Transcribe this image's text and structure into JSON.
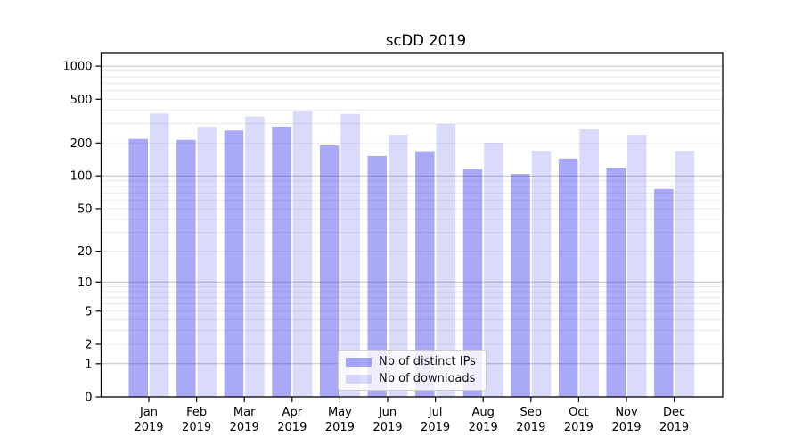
{
  "chart_data": {
    "type": "bar",
    "title": "scDD 2019",
    "categories": [
      "Jan 2019",
      "Feb 2019",
      "Mar 2019",
      "Apr 2019",
      "May 2019",
      "Jun 2019",
      "Jul 2019",
      "Aug 2019",
      "Sep 2019",
      "Oct 2019",
      "Nov 2019",
      "Dec 2019"
    ],
    "series": [
      {
        "name": "Nb of distinct IPs",
        "color": "rgba(50,50,235,0.42)",
        "values": [
          218,
          214,
          260,
          282,
          190,
          152,
          168,
          115,
          104,
          144,
          119,
          76
        ]
      },
      {
        "name": "Nb of downloads",
        "color": "rgba(50,50,235,0.18)",
        "values": [
          370,
          281,
          348,
          390,
          368,
          238,
          298,
          201,
          170,
          266,
          238,
          170
        ]
      }
    ],
    "xlabel": "",
    "ylabel": "",
    "yscale": "log1p",
    "ylim": [
      0,
      1325
    ],
    "yticks": [
      0,
      1,
      2,
      5,
      10,
      20,
      50,
      100,
      200,
      500,
      1000
    ],
    "grid": {
      "on": true,
      "minor_color": "#ebebeb",
      "major_color": "#c0c0c0",
      "major_values": [
        1,
        10,
        100,
        1000
      ]
    },
    "legend_position": "lower center",
    "axis_color": "#000000",
    "text_color": "#000000"
  }
}
